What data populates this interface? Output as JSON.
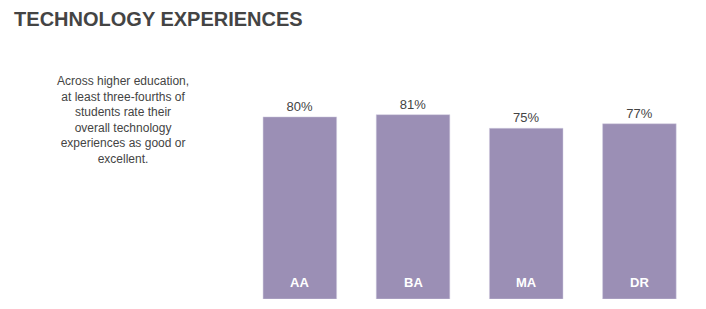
{
  "chart_data": {
    "type": "bar",
    "title": "TECHNOLOGY EXPERIENCES",
    "categories": [
      "AA",
      "BA",
      "MA",
      "DR"
    ],
    "values": [
      80,
      81,
      75,
      77
    ],
    "value_labels": [
      "80%",
      "81%",
      "75%",
      "77%"
    ],
    "data_labels": true,
    "color": "#9B8FB5",
    "ylim": [
      0,
      105
    ],
    "tick_labels": false,
    "grid": false,
    "annotation": "Across higher education,\nat least three-fourths of\nstudents rate their\noverall technology\nexperiences as good or\nexcellent."
  }
}
